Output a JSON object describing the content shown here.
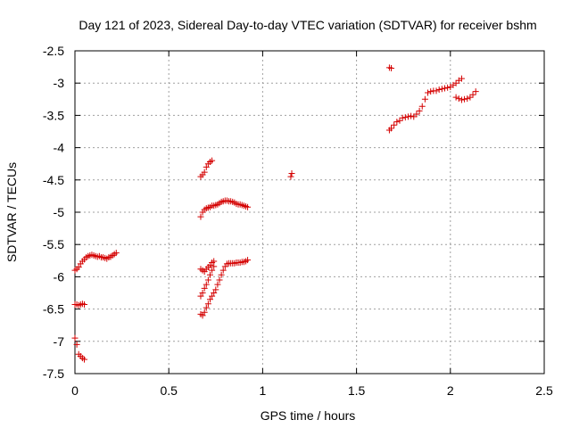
{
  "chart_data": {
    "type": "scatter",
    "title": "Day 121 of 2023, Sidereal Day-to-day VTEC variation (SDTVAR) for receiver bshm",
    "xlabel": "GPS time / hours",
    "ylabel": "SDTVAR / TECUs",
    "xlim": [
      0,
      2.5
    ],
    "ylim": [
      -7.5,
      -2.5
    ],
    "grid": true,
    "marker": "+",
    "color": "#d40000",
    "xticks": [
      0,
      0.5,
      1,
      1.5,
      2,
      2.5
    ],
    "xtick_labels": [
      "0",
      "0.5",
      "1",
      "1.5",
      "2",
      "2.5"
    ],
    "yticks": [
      -7.5,
      -7,
      -6.5,
      -6,
      -5.5,
      -5,
      -4.5,
      -4,
      -3.5,
      -3,
      -2.5
    ],
    "ytick_labels": [
      "-7.5",
      "-7",
      "-6.5",
      "-6",
      "-5.5",
      "-5",
      "-4.5",
      "-4",
      "-3.5",
      "-3",
      "-2.5"
    ],
    "series": [
      {
        "name": "SDTVAR",
        "x": [
          0.0,
          0.01,
          0.02,
          0.03,
          0.04,
          0.05,
          0.06,
          0.07,
          0.08,
          0.09,
          0.1,
          0.11,
          0.12,
          0.13,
          0.14,
          0.15,
          0.16,
          0.17,
          0.18,
          0.19,
          0.2,
          0.21,
          0.22,
          0.0,
          0.01,
          0.02,
          0.03,
          0.04,
          0.05,
          0.0,
          0.01,
          0.02,
          0.03,
          0.04,
          0.05,
          0.67,
          0.68,
          0.69,
          0.7,
          0.71,
          0.72,
          0.73,
          0.67,
          0.68,
          0.69,
          0.7,
          0.71,
          0.72,
          0.73,
          0.74,
          0.75,
          0.76,
          0.77,
          0.78,
          0.79,
          0.8,
          0.81,
          0.82,
          0.83,
          0.84,
          0.85,
          0.86,
          0.87,
          0.88,
          0.89,
          0.9,
          0.91,
          0.92,
          0.67,
          0.68,
          0.69,
          0.7,
          0.71,
          0.72,
          0.73,
          0.74,
          0.67,
          0.68,
          0.69,
          0.7,
          0.71,
          0.72,
          0.73,
          0.74,
          0.75,
          0.76,
          0.77,
          0.78,
          0.79,
          0.8,
          0.81,
          0.82,
          0.83,
          0.84,
          0.85,
          0.86,
          0.87,
          0.88,
          0.89,
          0.9,
          0.91,
          0.92,
          0.67,
          0.68,
          0.69,
          0.7,
          0.71,
          0.72,
          0.73,
          0.74,
          1.15,
          1.155,
          1.675,
          1.685,
          1.675,
          1.685,
          1.7,
          1.715,
          1.73,
          1.745,
          1.76,
          1.775,
          1.79,
          1.805,
          1.82,
          1.835,
          1.85,
          1.865,
          1.88,
          1.895,
          1.91,
          1.925,
          1.94,
          1.955,
          1.97,
          1.985,
          2.0,
          2.015,
          2.03,
          2.045,
          2.06,
          2.03,
          2.045,
          2.06,
          2.075,
          2.09,
          2.105,
          2.12,
          2.135
        ],
        "y": [
          -5.9,
          -5.88,
          -5.85,
          -5.8,
          -5.76,
          -5.73,
          -5.7,
          -5.68,
          -5.67,
          -5.66,
          -5.67,
          -5.68,
          -5.69,
          -5.68,
          -5.7,
          -5.7,
          -5.71,
          -5.72,
          -5.7,
          -5.69,
          -5.67,
          -5.65,
          -5.63,
          -6.43,
          -6.43,
          -6.44,
          -6.43,
          -6.42,
          -6.43,
          -6.95,
          -7.05,
          -7.2,
          -7.23,
          -7.26,
          -7.28,
          -4.45,
          -4.42,
          -4.38,
          -4.3,
          -4.25,
          -4.22,
          -4.2,
          -5.07,
          -5.0,
          -4.96,
          -4.94,
          -4.93,
          -4.92,
          -4.9,
          -4.9,
          -4.89,
          -4.88,
          -4.86,
          -4.84,
          -4.83,
          -4.82,
          -4.82,
          -4.83,
          -4.83,
          -4.84,
          -4.85,
          -4.87,
          -4.88,
          -4.88,
          -4.89,
          -4.9,
          -4.91,
          -4.92,
          -5.88,
          -5.9,
          -5.92,
          -5.88,
          -5.85,
          -5.82,
          -5.78,
          -5.76,
          -6.58,
          -6.6,
          -6.55,
          -6.48,
          -6.42,
          -6.35,
          -6.3,
          -6.25,
          -6.2,
          -6.12,
          -6.05,
          -5.97,
          -5.9,
          -5.84,
          -5.8,
          -5.79,
          -5.79,
          -5.79,
          -5.79,
          -5.78,
          -5.78,
          -5.78,
          -5.77,
          -5.77,
          -5.76,
          -5.74,
          -6.3,
          -6.25,
          -6.18,
          -6.12,
          -6.05,
          -5.97,
          -5.9,
          -5.84,
          -4.45,
          -4.4,
          -2.76,
          -2.77,
          -3.73,
          -3.7,
          -3.65,
          -3.6,
          -3.58,
          -3.54,
          -3.53,
          -3.52,
          -3.51,
          -3.52,
          -3.48,
          -3.43,
          -3.36,
          -3.25,
          -3.15,
          -3.13,
          -3.12,
          -3.12,
          -3.1,
          -3.09,
          -3.08,
          -3.07,
          -3.06,
          -3.03,
          -3.0,
          -2.96,
          -2.93,
          -3.22,
          -3.24,
          -3.26,
          -3.25,
          -3.24,
          -3.22,
          -3.18,
          -3.13
        ]
      }
    ]
  }
}
